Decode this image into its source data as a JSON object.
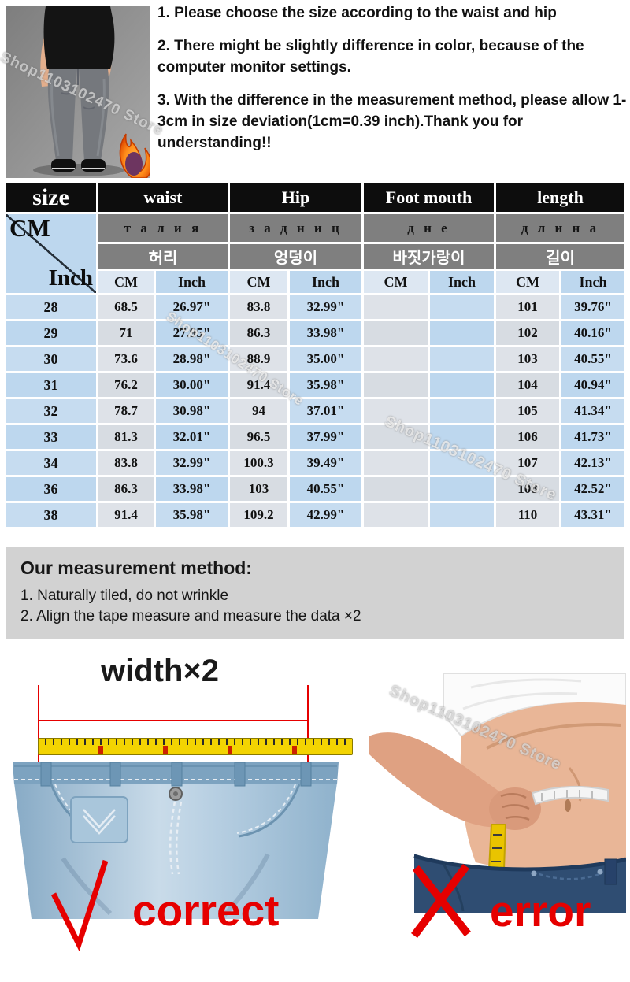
{
  "watermark": "Shop1103102470 Store",
  "notes": [
    "1. Please choose the size according to the waist and hip",
    "2. There might be slightly difference in color, because of the computer monitor settings.",
    "3. With the difference in the measurement method, please allow 1-3cm in size deviation(1cm=0.39 inch).Thank you for understanding!!"
  ],
  "table": {
    "columns": [
      "size",
      "waist",
      "Hip",
      "Foot mouth",
      "length"
    ],
    "russian": [
      "т а л и я",
      "з а д н и ц",
      "д н е",
      "д л и н а"
    ],
    "korean": [
      "허리",
      "엉덩이",
      "바짓가랑이",
      "길이"
    ],
    "unit_cm": "CM",
    "unit_inch": "Inch",
    "rows": [
      [
        "28",
        "68.5",
        "26.97\"",
        "83.8",
        "32.99\"",
        "",
        "",
        "101",
        "39.76\""
      ],
      [
        "29",
        "71",
        "27.95\"",
        "86.3",
        "33.98\"",
        "",
        "",
        "102",
        "40.16\""
      ],
      [
        "30",
        "73.6",
        "28.98\"",
        "88.9",
        "35.00\"",
        "",
        "",
        "103",
        "40.55\""
      ],
      [
        "31",
        "76.2",
        "30.00\"",
        "91.4",
        "35.98\"",
        "",
        "",
        "104",
        "40.94\""
      ],
      [
        "32",
        "78.7",
        "30.98\"",
        "94",
        "37.01\"",
        "",
        "",
        "105",
        "41.34\""
      ],
      [
        "33",
        "81.3",
        "32.01\"",
        "96.5",
        "37.99\"",
        "",
        "",
        "106",
        "41.73\""
      ],
      [
        "34",
        "83.8",
        "32.99\"",
        "100.3",
        "39.49\"",
        "",
        "",
        "107",
        "42.13\""
      ],
      [
        "36",
        "86.3",
        "33.98\"",
        "103",
        "40.55\"",
        "",
        "",
        "108",
        "42.52\""
      ],
      [
        "38",
        "91.4",
        "35.98\"",
        "109.2",
        "42.99\"",
        "",
        "",
        "110",
        "43.31\""
      ]
    ]
  },
  "method": {
    "title": "Our measurement method:",
    "items": [
      "1. Naturally tiled, do not wrinkle",
      "2. Align the tape measure and measure the data ×2"
    ]
  },
  "bottom": {
    "width_label": "width×2",
    "correct_label": "correct",
    "error_label": "error"
  },
  "colors": {
    "accent_red": "#e60000",
    "table_blue": "#bdd7ee",
    "table_gray": "#d7dce2",
    "header_black": "#0d0d0d",
    "subheader_gray": "#7f7f7f",
    "method_gray": "#d2d2d2",
    "tape_yellow": "#f3d402"
  }
}
